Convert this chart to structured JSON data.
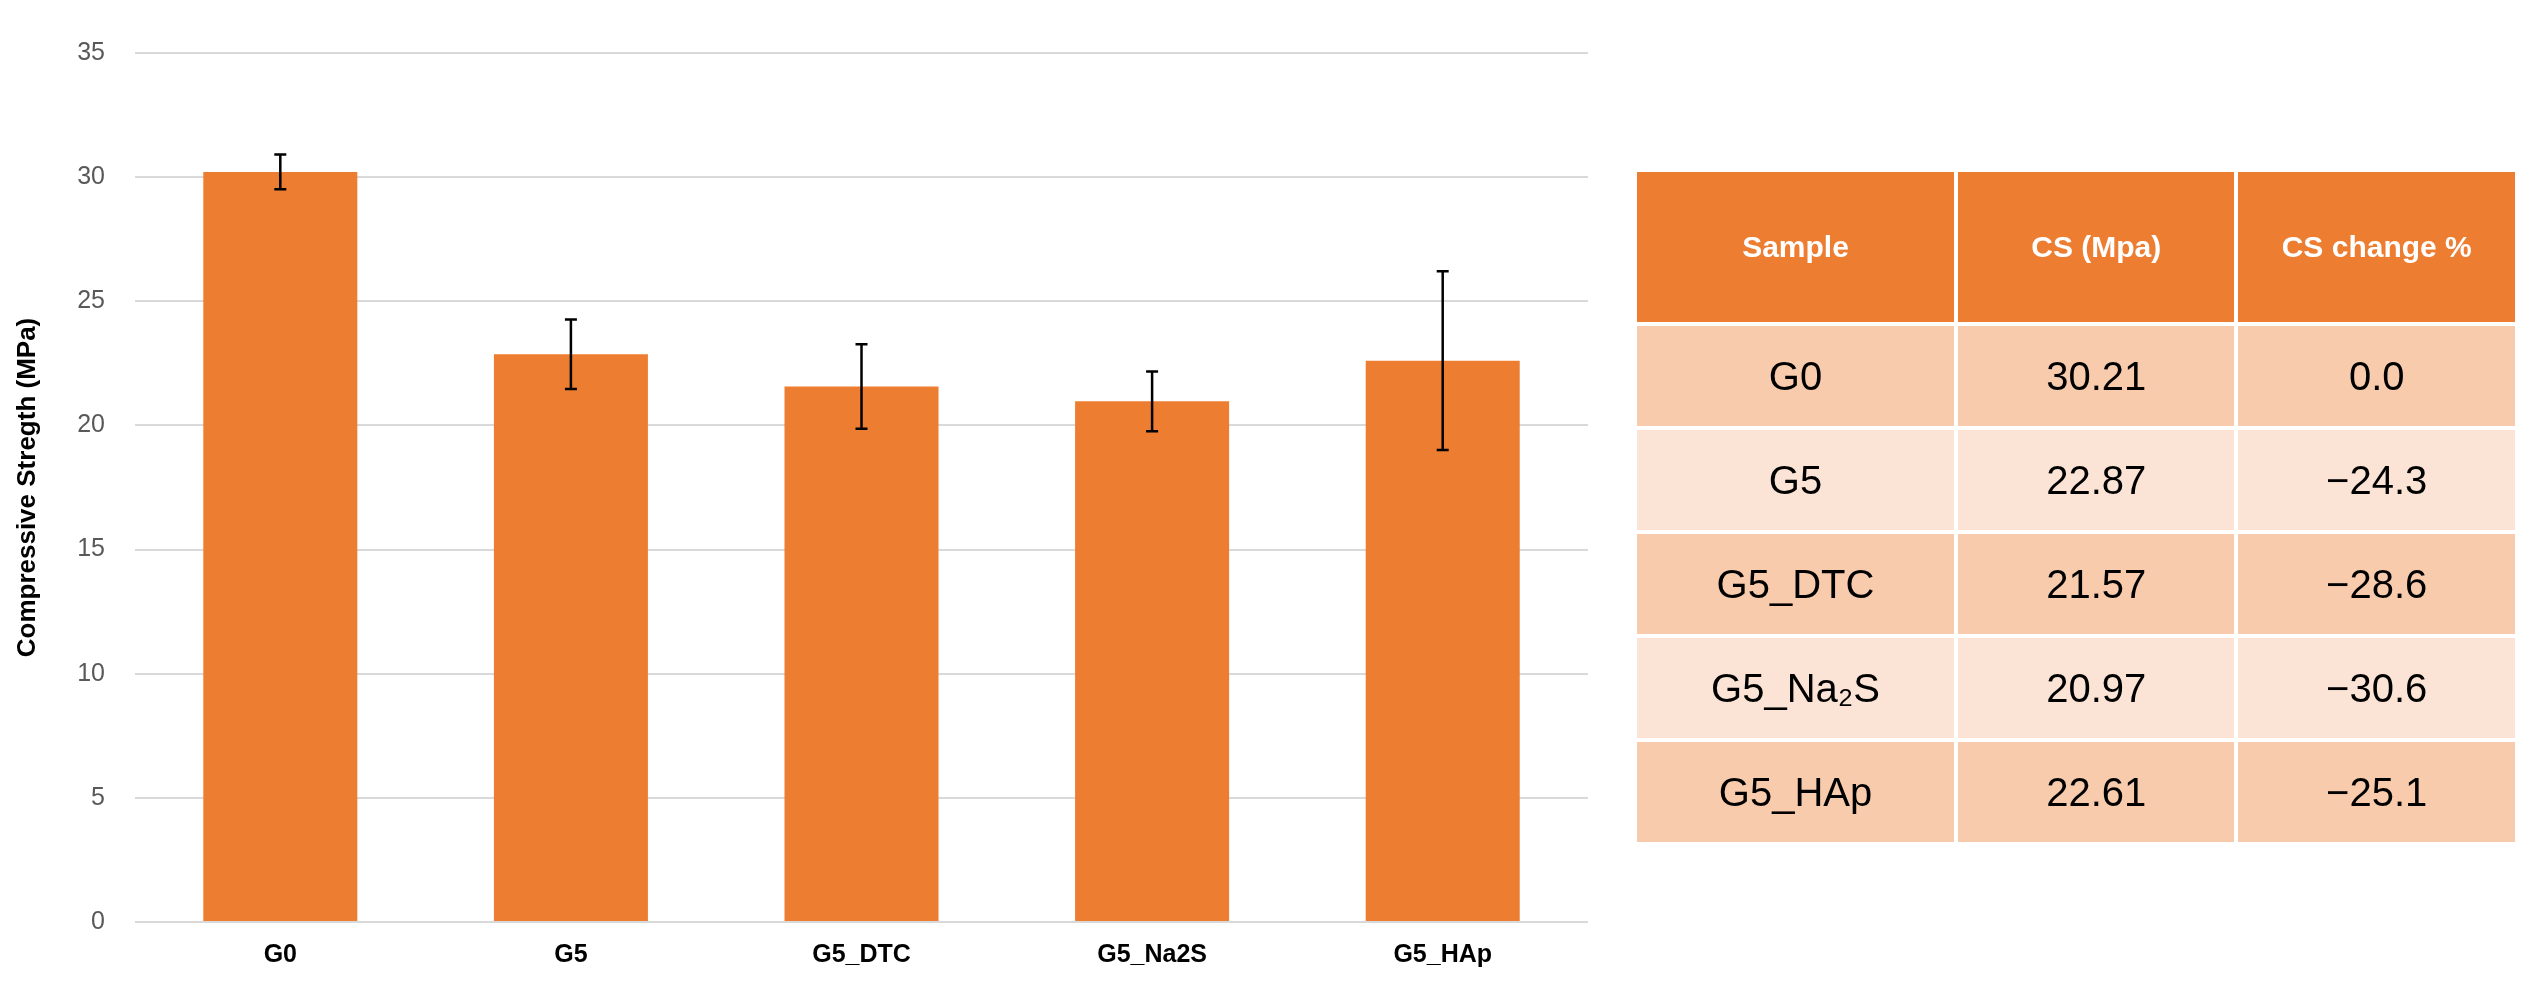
{
  "chart_data": [
    {
      "type": "bar",
      "ylabel": "Compressive Stregth (MPa)",
      "categories": [
        "G0",
        "G5",
        "G5_DTC",
        "G5_Na2S",
        "G5_HAp"
      ],
      "values": [
        30.21,
        22.87,
        21.57,
        20.97,
        22.61
      ],
      "errors": [
        0.7,
        1.4,
        1.7,
        1.2,
        3.6
      ],
      "color": "#ed7d31",
      "ylim": [
        0,
        35
      ],
      "yticks": [
        0,
        5,
        10,
        15,
        20,
        25,
        30,
        35
      ],
      "grid": "y",
      "legend": false
    },
    {
      "type": "other",
      "xlabel": "Sample",
      "data_labels": true,
      "categories": [
        "G0",
        "G5",
        "G5_DTC",
        "G5_Na₂S",
        "G5_HAp"
      ],
      "series": [
        {
          "name": "CS (Mpa)",
          "values": [
            30.21,
            22.87,
            21.57,
            20.97,
            22.61
          ],
          "colors": [
            "#f8cbad",
            "#fbe4d5",
            "#f8cbad",
            "#fbe4d5",
            "#f8cbad"
          ]
        },
        {
          "name": "CS change %",
          "values": [
            0.0,
            -24.3,
            -28.6,
            -30.6,
            -25.1
          ],
          "value_labels": [
            "0.0",
            "−24.3",
            "−28.6",
            "−30.6",
            "−25.1"
          ],
          "colors": [
            "#f8cbad",
            "#fbe4d5",
            "#f8cbad",
            "#fbe4d5",
            "#f8cbad"
          ]
        }
      ]
    }
  ]
}
